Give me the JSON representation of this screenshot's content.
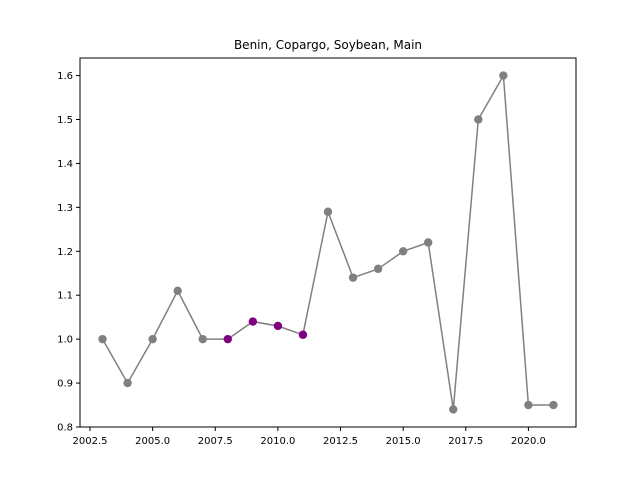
{
  "chart_data": {
    "type": "line",
    "title": "Benin, Copargo, Soybean, Main",
    "xlabel": "",
    "ylabel": "",
    "xlim": [
      2002.1,
      2021.9
    ],
    "ylim": [
      0.8,
      1.64
    ],
    "x_ticks": [
      2002.5,
      2005.0,
      2007.5,
      2010.0,
      2012.5,
      2015.0,
      2017.5,
      2020.0
    ],
    "x_tick_labels": [
      "2002.5",
      "2005.0",
      "2007.5",
      "2010.0",
      "2012.5",
      "2015.0",
      "2017.5",
      "2020.0"
    ],
    "y_ticks": [
      0.8,
      0.9,
      1.0,
      1.1,
      1.2,
      1.3,
      1.4,
      1.5,
      1.6
    ],
    "y_tick_labels": [
      "0.8",
      "0.9",
      "1.0",
      "1.1",
      "1.2",
      "1.3",
      "1.4",
      "1.5",
      "1.6"
    ],
    "grid": false,
    "line_color": "#808080",
    "highlight_color": "#800080",
    "series": [
      {
        "x": [
          2003,
          2004,
          2005,
          2006,
          2007,
          2008,
          2009,
          2010,
          2011,
          2012,
          2013,
          2014,
          2015,
          2016,
          2017,
          2018,
          2019,
          2020,
          2021
        ],
        "values": [
          1.0,
          0.9,
          1.0,
          1.11,
          1.0,
          1.0,
          1.04,
          1.03,
          1.01,
          1.29,
          1.14,
          1.16,
          1.2,
          1.22,
          0.84,
          1.5,
          1.6,
          0.85,
          0.85
        ],
        "highlighted_x": [
          2008,
          2009,
          2010,
          2011
        ]
      }
    ]
  }
}
